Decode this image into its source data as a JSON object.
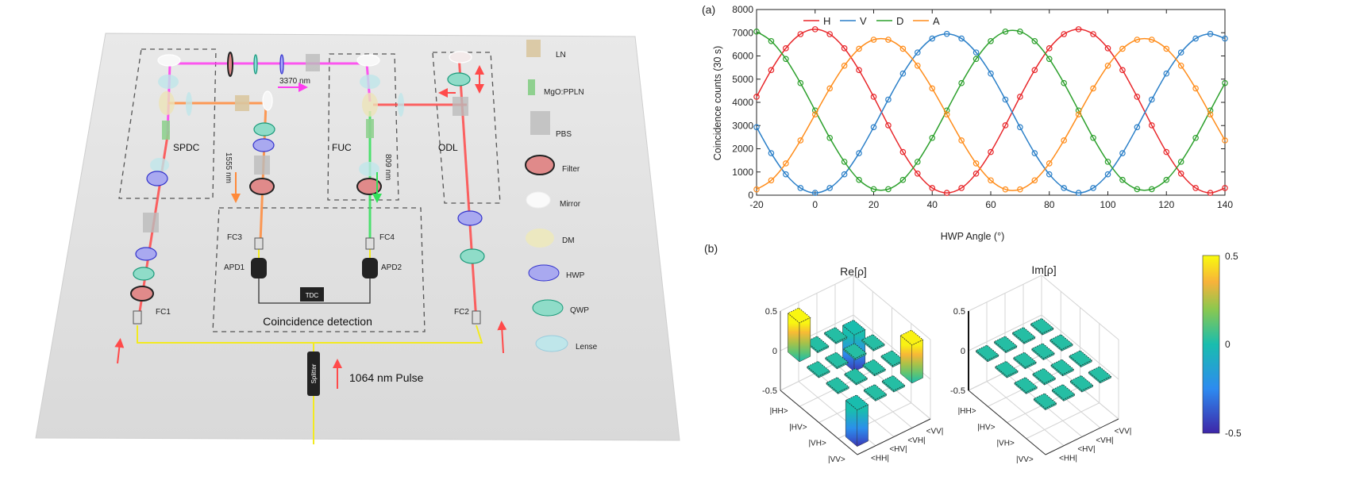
{
  "setup": {
    "regions": {
      "spdc": "SPDC",
      "fuc": "FUC",
      "odl": "ODL",
      "coincidence": "Coincidence detection"
    },
    "wavelengths": {
      "idler": "3370 nm",
      "signal": "1555 nm",
      "upconverted": "809 nm",
      "pump": "1064 nm Pulse"
    },
    "components": {
      "fc1": "FC1",
      "fc2": "FC2",
      "fc3": "FC3",
      "fc4": "FC4",
      "apd1": "APD1",
      "apd2": "APD2",
      "tdc": "TDC",
      "splitter": "Splitter"
    },
    "legend": [
      {
        "label": "LN",
        "icon": "ln-crystal-icon"
      },
      {
        "label": "MgO:PPLN",
        "icon": "ppln-crystal-icon"
      },
      {
        "label": "PBS",
        "icon": "pbs-cube-icon"
      },
      {
        "label": "Filter",
        "icon": "filter-icon"
      },
      {
        "label": "Mirror",
        "icon": "mirror-icon"
      },
      {
        "label": "DM",
        "icon": "dichroic-mirror-icon"
      },
      {
        "label": "HWP",
        "icon": "half-wave-plate-icon"
      },
      {
        "label": "QWP",
        "icon": "quarter-wave-plate-icon"
      },
      {
        "label": "Lense",
        "icon": "lens-icon"
      }
    ],
    "beam_colors": {
      "pump": "#ff4a4a",
      "idler": "#ff3cf0",
      "signal": "#ff8a3a",
      "upconverted": "#33e05a",
      "fiber": "#f2ea20"
    }
  },
  "panels": {
    "a": "(a)",
    "b": "(b)"
  },
  "chart_data": [
    {
      "type": "line",
      "xlabel": "HWP Angle (°)",
      "ylabel": "Coincidence counts (30 s)",
      "xlim": [
        -20,
        140
      ],
      "ylim": [
        0,
        8000
      ],
      "xticks": [
        -20,
        0,
        20,
        40,
        60,
        80,
        100,
        120,
        140
      ],
      "yticks": [
        0,
        1000,
        2000,
        3000,
        4000,
        5000,
        6000,
        7000,
        8000
      ],
      "legend_position": "top-left",
      "grid": false,
      "x": [
        -20,
        -15,
        -10,
        -5,
        0,
        5,
        10,
        15,
        20,
        25,
        30,
        35,
        40,
        45,
        50,
        55,
        60,
        65,
        70,
        75,
        80,
        85,
        90,
        95,
        100,
        105,
        110,
        115,
        120,
        125,
        130,
        135,
        140
      ],
      "series": [
        {
          "name": "H",
          "color": "#e8262a",
          "values": [
            4240,
            5390,
            6330,
            6940,
            7150,
            6940,
            6330,
            5390,
            4240,
            3010,
            1860,
            930,
            310,
            100,
            310,
            930,
            1860,
            3010,
            4240,
            5390,
            6330,
            6940,
            7150,
            6940,
            6330,
            5390,
            4240,
            3010,
            1860,
            930,
            310,
            100,
            310
          ]
        },
        {
          "name": "V",
          "color": "#2a7fc8",
          "values": [
            2930,
            1810,
            900,
            310,
            100,
            310,
            900,
            1810,
            2930,
            4120,
            5240,
            6150,
            6750,
            6950,
            6750,
            6150,
            5240,
            4120,
            2930,
            1810,
            900,
            310,
            100,
            310,
            900,
            1810,
            2930,
            4120,
            5240,
            6150,
            6750,
            6950,
            6750
          ]
        },
        {
          "name": "D",
          "color": "#2ca02c",
          "values": [
            7050,
            6640,
            5870,
            4830,
            3650,
            2470,
            1440,
            660,
            260,
            260,
            660,
            1440,
            2470,
            3650,
            4830,
            5870,
            6640,
            7050,
            7050,
            6640,
            5870,
            4830,
            3650,
            2470,
            1440,
            660,
            260,
            260,
            660,
            1440,
            2470,
            3650,
            4830
          ]
        },
        {
          "name": "A",
          "color": "#ff8c1a",
          "values": [
            250,
            640,
            1370,
            2360,
            3480,
            4600,
            5580,
            6310,
            6700,
            6700,
            6310,
            5580,
            4600,
            3480,
            2360,
            1370,
            640,
            250,
            250,
            640,
            1370,
            2360,
            3480,
            4600,
            5580,
            6310,
            6700,
            6700,
            6310,
            5580,
            4600,
            3480,
            2360
          ]
        }
      ]
    },
    {
      "type": "bar3",
      "title": "Re[ρ]",
      "rows": [
        "|HH>",
        "|HV>",
        "|VH>",
        "|VV>"
      ],
      "cols": [
        "<HH|",
        "<HV|",
        "<VH|",
        "<VV|"
      ],
      "zlim": [
        -0.5,
        0.5
      ],
      "zticks": [
        "0.5",
        "0",
        "-0.5"
      ],
      "values": [
        [
          0.49,
          0.01,
          0.0,
          -0.46
        ],
        [
          0.01,
          0.01,
          0.0,
          0.01
        ],
        [
          0.0,
          0.0,
          0.01,
          0.01
        ],
        [
          -0.46,
          0.01,
          0.01,
          0.48
        ]
      ]
    },
    {
      "type": "bar3",
      "title": "Im[ρ]",
      "rows": [
        "|HH>",
        "|HV>",
        "|VH>",
        "|VV>"
      ],
      "cols": [
        "<HH|",
        "<HV|",
        "<VH|",
        "<VV|"
      ],
      "zlim": [
        -0.5,
        0.5
      ],
      "zticks": [
        "0.5",
        "0",
        "-0.5"
      ],
      "values": [
        [
          0.0,
          0.0,
          0.0,
          0.01
        ],
        [
          0.0,
          0.0,
          0.0,
          0.0
        ],
        [
          0.0,
          0.0,
          0.0,
          0.0
        ],
        [
          0.01,
          0.0,
          0.0,
          0.0
        ]
      ]
    }
  ],
  "colorbar": {
    "min": -0.5,
    "max": 0.5,
    "ticks": [
      "0.5",
      "0",
      "-0.5"
    ],
    "colormap": "parula"
  }
}
